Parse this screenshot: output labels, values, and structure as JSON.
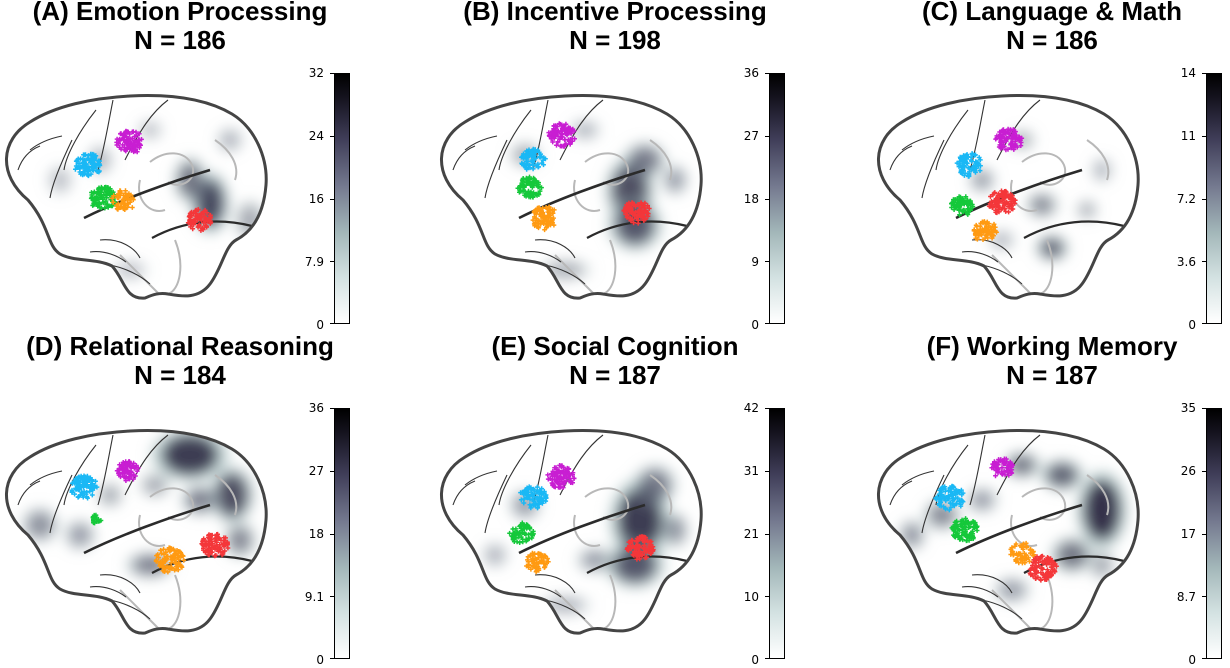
{
  "panels": [
    {
      "letter": "A",
      "title": "(A) Emotion Processing",
      "n": "N = 186",
      "ticks": [
        "32",
        "24",
        "16",
        "7.9",
        "0"
      ]
    },
    {
      "letter": "B",
      "title": "(B) Incentive Processing",
      "n": "N = 198",
      "ticks": [
        "36",
        "27",
        "18",
        "9",
        "0"
      ]
    },
    {
      "letter": "C",
      "title": "(C) Language & Math",
      "n": "N = 186",
      "ticks": [
        "14",
        "11",
        "7.2",
        "3.6",
        "0"
      ]
    },
    {
      "letter": "D",
      "title": "(D) Relational Reasoning",
      "n": "N = 184",
      "ticks": [
        "36",
        "27",
        "18",
        "9.1",
        "0"
      ]
    },
    {
      "letter": "E",
      "title": "(E) Social Cognition",
      "n": "N = 187",
      "ticks": [
        "42",
        "31",
        "21",
        "10",
        "0"
      ]
    },
    {
      "letter": "F",
      "title": "(F) Working Memory",
      "n": "N = 187",
      "ticks": [
        "35",
        "26",
        "17",
        "8.7",
        "0"
      ]
    }
  ],
  "colors": {
    "cyan": "#1ab8f5",
    "magenta": "#c81ed2",
    "green": "#15c83a",
    "orange": "#ff9a12",
    "red": "#f4373a",
    "outline": "#444444",
    "sulcus": "#2b2b2b",
    "gyri_light": "#b8b8b8"
  }
}
